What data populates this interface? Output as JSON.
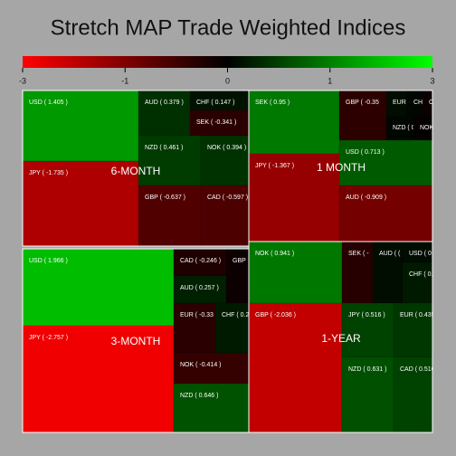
{
  "chart_data": {
    "type": "treemap",
    "title": "Stretch MAP Trade Weighted Indices",
    "colors": [
      "#ff0000",
      "#000000",
      "#00ff00"
    ],
    "colorbar_ticks": [
      -3,
      -1,
      0,
      1,
      3
    ],
    "groups": [
      {
        "name": "6-MONTH",
        "leaves": [
          {
            "label": "USD ( 1.405 )",
            "value": 1.405
          },
          {
            "label": "JPY ( -1.735 )",
            "value": -1.735
          },
          {
            "label": "AUD ( 0.379 )",
            "value": 0.379
          },
          {
            "label": "CHF ( 0.147 )",
            "value": 0.147
          },
          {
            "label": "SEK ( -0.341 )",
            "value": -0.341
          },
          {
            "label": "NZD ( 0.461 )",
            "value": 0.461
          },
          {
            "label": "NOK ( 0.394 )",
            "value": 0.394
          },
          {
            "label": "GBP ( -0.637 )",
            "value": -0.637
          },
          {
            "label": "CAD ( -0.597 )",
            "value": -0.597
          }
        ]
      },
      {
        "name": "1 MONTH",
        "leaves": [
          {
            "label": "SEK ( 0.95 )",
            "value": 0.95
          },
          {
            "label": "JPY ( -1.367 )",
            "value": -1.367
          },
          {
            "label": "GBP ( -0.35",
            "value": -0.35
          },
          {
            "label": "EUR",
            "value": 0.1
          },
          {
            "label": "CH",
            "value": 0.05
          },
          {
            "label": "CA",
            "value": -0.1
          },
          {
            "label": "NZD ( 0",
            "value": 0.05
          },
          {
            "label": "NOK",
            "value": -0.05
          },
          {
            "label": "USD ( 0.713 )",
            "value": 0.713
          },
          {
            "label": "AUD ( -0.909 )",
            "value": -0.909
          }
        ]
      },
      {
        "name": "3-MONTH",
        "leaves": [
          {
            "label": "USD ( 1.966 )",
            "value": 1.966
          },
          {
            "label": "JPY ( -2.757 )",
            "value": -2.757
          },
          {
            "label": "CAD ( -0.246 )",
            "value": -0.246
          },
          {
            "label": "AUD ( 0.257 )",
            "value": 0.257
          },
          {
            "label": "GBP",
            "value": -0.1
          },
          {
            "label": "EUR ( -0.33",
            "value": -0.33
          },
          {
            "label": "CHF ( 0.2",
            "value": 0.2
          },
          {
            "label": "NOK ( -0.414 )",
            "value": -0.414
          },
          {
            "label": "NZD ( 0.646 )",
            "value": 0.646
          }
        ]
      },
      {
        "name": "1-YEAR",
        "leaves": [
          {
            "label": "NOK ( 0.941 )",
            "value": 0.941
          },
          {
            "label": "GBP ( -2.036 )",
            "value": -2.036
          },
          {
            "label": "SEK ( -",
            "value": -0.3
          },
          {
            "label": "AUD ( (",
            "value": 0.1
          },
          {
            "label": "USD ( 0",
            "value": 0.1
          },
          {
            "label": "CHF ( 0.",
            "value": 0.2
          },
          {
            "label": "JPY ( 0.516 )",
            "value": 0.516
          },
          {
            "label": "EUR ( 0.435",
            "value": 0.435
          },
          {
            "label": "NZD ( 0.631 )",
            "value": 0.631
          },
          {
            "label": "CAD ( 0.516",
            "value": 0.516
          }
        ]
      }
    ]
  }
}
